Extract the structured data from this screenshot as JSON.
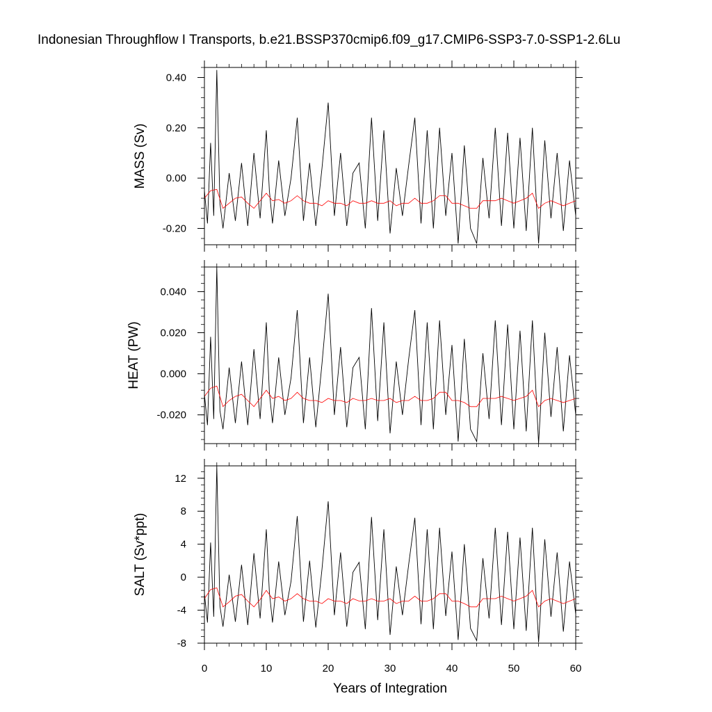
{
  "title": "Indonesian Throughflow I Transports, b.e21.BSSP370cmip6.f09_g17.CMIP6-SSP3-7.0-SSP1-2.6Lu",
  "chart_data": [
    {
      "type": "line",
      "ylabel": "MASS (Sv)",
      "ylim": [
        -0.265,
        0.44
      ],
      "yticks": [
        -0.2,
        0.0,
        0.2,
        0.4
      ],
      "ytick_labels": [
        "-0.20",
        "0.00",
        "0.20",
        "0.40"
      ],
      "series": [
        {
          "color": "#000000",
          "x": [
            0.0,
            0.5,
            1.0,
            1.5,
            2.0,
            2.5,
            3.0,
            4.0,
            5.0,
            6.0,
            7.0,
            8.0,
            9.0,
            10.0,
            10.5,
            11.0,
            12.0,
            13.0,
            14.0,
            15.0,
            16.0,
            17.0,
            18.0,
            19.0,
            20.0,
            21.0,
            22.0,
            23.0,
            24.0,
            25.0,
            26.0,
            27.0,
            28.0,
            29.0,
            30.0,
            31.0,
            32.0,
            33.0,
            34.0,
            35.0,
            36.0,
            37.0,
            38.0,
            39.0,
            40.0,
            41.0,
            42.0,
            43.0,
            44.0,
            45.0,
            46.0,
            47.0,
            48.0,
            49.0,
            50.0,
            51.0,
            52.0,
            53.0,
            54.0,
            55.0,
            56.0,
            57.0,
            58.0,
            59.0,
            60.0
          ],
          "values": [
            -0.05,
            -0.18,
            0.14,
            -0.15,
            0.43,
            -0.1,
            -0.2,
            0.02,
            -0.17,
            0.06,
            -0.19,
            0.1,
            -0.16,
            0.19,
            -0.05,
            -0.18,
            0.07,
            -0.15,
            0.0,
            0.24,
            -0.17,
            0.06,
            -0.19,
            0.04,
            0.3,
            -0.15,
            0.1,
            -0.19,
            0.02,
            0.06,
            -0.2,
            0.24,
            -0.17,
            0.19,
            -0.22,
            0.04,
            -0.15,
            0.05,
            0.24,
            -0.18,
            0.19,
            -0.2,
            0.2,
            -0.15,
            0.1,
            -0.26,
            0.13,
            -0.2,
            -0.26,
            0.08,
            -0.16,
            0.2,
            -0.19,
            0.18,
            -0.2,
            0.16,
            -0.21,
            0.2,
            -0.26,
            0.15,
            -0.16,
            0.1,
            -0.21,
            0.07,
            -0.15
          ]
        },
        {
          "color": "#ff0000",
          "x": [
            0,
            1,
            2,
            3,
            4,
            5,
            6,
            7,
            8,
            9,
            10,
            11,
            12,
            13,
            14,
            15,
            16,
            17,
            18,
            19,
            20,
            21,
            22,
            23,
            24,
            25,
            26,
            27,
            28,
            29,
            30,
            31,
            32,
            33,
            34,
            35,
            36,
            37,
            38,
            39,
            40,
            41,
            42,
            43,
            44,
            45,
            46,
            47,
            48,
            49,
            50,
            51,
            52,
            53,
            54,
            55,
            56,
            57,
            58,
            59,
            60
          ],
          "values": [
            -0.08,
            -0.05,
            -0.045,
            -0.12,
            -0.1,
            -0.08,
            -0.075,
            -0.1,
            -0.12,
            -0.09,
            -0.06,
            -0.09,
            -0.085,
            -0.1,
            -0.09,
            -0.07,
            -0.09,
            -0.1,
            -0.1,
            -0.11,
            -0.09,
            -0.1,
            -0.1,
            -0.11,
            -0.09,
            -0.1,
            -0.1,
            -0.09,
            -0.1,
            -0.1,
            -0.09,
            -0.11,
            -0.1,
            -0.1,
            -0.08,
            -0.1,
            -0.1,
            -0.09,
            -0.07,
            -0.07,
            -0.1,
            -0.1,
            -0.11,
            -0.12,
            -0.12,
            -0.09,
            -0.09,
            -0.09,
            -0.08,
            -0.09,
            -0.1,
            -0.09,
            -0.08,
            -0.06,
            -0.12,
            -0.1,
            -0.09,
            -0.1,
            -0.11,
            -0.1,
            -0.09
          ]
        }
      ]
    },
    {
      "type": "line",
      "ylabel": "HEAT (PW)",
      "ylim": [
        -0.034,
        0.052
      ],
      "yticks": [
        -0.02,
        0.0,
        0.02,
        0.04
      ],
      "ytick_labels": [
        "-0.020",
        "0.000",
        "0.020",
        "0.040"
      ],
      "series": [
        {
          "color": "#000000",
          "x": [
            0.0,
            0.5,
            1.0,
            1.5,
            2.0,
            2.5,
            3.0,
            4.0,
            5.0,
            6.0,
            7.0,
            8.0,
            9.0,
            10.0,
            10.5,
            11.0,
            12.0,
            13.0,
            14.0,
            15.0,
            16.0,
            17.0,
            18.0,
            19.0,
            20.0,
            21.0,
            22.0,
            23.0,
            24.0,
            25.0,
            26.0,
            27.0,
            28.0,
            29.0,
            30.0,
            31.0,
            32.0,
            33.0,
            34.0,
            35.0,
            36.0,
            37.0,
            38.0,
            39.0,
            40.0,
            41.0,
            42.0,
            43.0,
            44.0,
            45.0,
            46.0,
            47.0,
            48.0,
            49.0,
            50.0,
            51.0,
            52.0,
            53.0,
            54.0,
            55.0,
            56.0,
            57.0,
            58.0,
            59.0,
            60.0
          ],
          "values": [
            -0.01,
            -0.025,
            0.018,
            -0.022,
            0.052,
            -0.018,
            -0.027,
            0.003,
            -0.024,
            0.006,
            -0.025,
            0.012,
            -0.022,
            0.025,
            -0.009,
            -0.024,
            0.008,
            -0.02,
            -0.002,
            0.031,
            -0.024,
            0.008,
            -0.026,
            0.005,
            0.039,
            -0.02,
            0.013,
            -0.026,
            0.003,
            0.008,
            -0.027,
            0.032,
            -0.023,
            0.025,
            -0.029,
            0.006,
            -0.02,
            0.007,
            0.031,
            -0.025,
            0.025,
            -0.027,
            0.026,
            -0.02,
            0.014,
            -0.033,
            0.017,
            -0.027,
            -0.033,
            0.01,
            -0.022,
            0.026,
            -0.025,
            0.024,
            -0.027,
            0.021,
            -0.028,
            0.026,
            -0.034,
            0.02,
            -0.021,
            0.013,
            -0.028,
            0.009,
            -0.02
          ]
        },
        {
          "color": "#ff0000",
          "x": [
            0,
            1,
            2,
            3,
            4,
            5,
            6,
            7,
            8,
            9,
            10,
            11,
            12,
            13,
            14,
            15,
            16,
            17,
            18,
            19,
            20,
            21,
            22,
            23,
            24,
            25,
            26,
            27,
            28,
            29,
            30,
            31,
            32,
            33,
            34,
            35,
            36,
            37,
            38,
            39,
            40,
            41,
            42,
            43,
            44,
            45,
            46,
            47,
            48,
            49,
            50,
            51,
            52,
            53,
            54,
            55,
            56,
            57,
            58,
            59,
            60
          ],
          "values": [
            -0.011,
            -0.007,
            -0.006,
            -0.016,
            -0.013,
            -0.011,
            -0.01,
            -0.013,
            -0.016,
            -0.012,
            -0.008,
            -0.012,
            -0.011,
            -0.013,
            -0.012,
            -0.009,
            -0.012,
            -0.013,
            -0.013,
            -0.014,
            -0.012,
            -0.013,
            -0.013,
            -0.014,
            -0.012,
            -0.013,
            -0.013,
            -0.012,
            -0.013,
            -0.013,
            -0.012,
            -0.014,
            -0.013,
            -0.013,
            -0.011,
            -0.013,
            -0.013,
            -0.012,
            -0.009,
            -0.009,
            -0.013,
            -0.013,
            -0.014,
            -0.016,
            -0.016,
            -0.012,
            -0.012,
            -0.012,
            -0.011,
            -0.012,
            -0.013,
            -0.012,
            -0.011,
            -0.008,
            -0.016,
            -0.013,
            -0.012,
            -0.013,
            -0.014,
            -0.013,
            -0.012
          ]
        }
      ]
    },
    {
      "type": "line",
      "ylabel": "SALT (Sv*ppt)",
      "xlabel": "Years of Integration",
      "xlim": [
        0,
        60
      ],
      "xticks": [
        0,
        10,
        20,
        30,
        40,
        50,
        60
      ],
      "xtick_labels": [
        "0",
        "10",
        "20",
        "30",
        "40",
        "50",
        "60"
      ],
      "ylim": [
        -8,
        13.5
      ],
      "yticks": [
        -8,
        -4,
        0,
        4,
        8,
        12
      ],
      "ytick_labels": [
        "-8",
        "-4",
        "0",
        "4",
        "8",
        "12"
      ],
      "series": [
        {
          "color": "#000000",
          "x": [
            0.0,
            0.5,
            1.0,
            1.5,
            2.0,
            2.5,
            3.0,
            4.0,
            5.0,
            6.0,
            7.0,
            8.0,
            9.0,
            10.0,
            10.5,
            11.0,
            12.0,
            13.0,
            14.0,
            15.0,
            16.0,
            17.0,
            18.0,
            19.0,
            20.0,
            21.0,
            22.0,
            23.0,
            24.0,
            25.0,
            26.0,
            27.0,
            28.0,
            29.0,
            30.0,
            31.0,
            32.0,
            33.0,
            34.0,
            35.0,
            36.0,
            37.0,
            38.0,
            39.0,
            40.0,
            41.0,
            42.0,
            43.0,
            44.0,
            45.0,
            46.0,
            47.0,
            48.0,
            49.0,
            50.0,
            51.0,
            52.0,
            53.0,
            54.0,
            55.0,
            56.0,
            57.0,
            58.0,
            59.0,
            60.0
          ],
          "values": [
            -2.0,
            -5.5,
            4.2,
            -4.8,
            13.5,
            -3.5,
            -6.0,
            0.3,
            -5.4,
            1.5,
            -5.8,
            2.9,
            -5.0,
            5.8,
            -1.8,
            -5.5,
            1.9,
            -4.6,
            -0.5,
            7.4,
            -5.4,
            2.0,
            -6.1,
            1.0,
            9.2,
            -4.6,
            3.0,
            -6.0,
            0.6,
            1.8,
            -6.3,
            7.3,
            -5.2,
            5.8,
            -7.0,
            1.3,
            -4.6,
            1.5,
            7.2,
            -5.7,
            5.8,
            -6.3,
            6.0,
            -4.7,
            3.1,
            -7.6,
            4.0,
            -6.2,
            -7.7,
            2.3,
            -5.0,
            6.0,
            -5.8,
            5.5,
            -6.3,
            4.8,
            -6.5,
            6.0,
            -7.9,
            4.6,
            -4.8,
            3.0,
            -6.6,
            1.9,
            -4.5
          ]
        },
        {
          "color": "#ff0000",
          "x": [
            0,
            1,
            2,
            3,
            4,
            5,
            6,
            7,
            8,
            9,
            10,
            11,
            12,
            13,
            14,
            15,
            16,
            17,
            18,
            19,
            20,
            21,
            22,
            23,
            24,
            25,
            26,
            27,
            28,
            29,
            30,
            31,
            32,
            33,
            34,
            35,
            36,
            37,
            38,
            39,
            40,
            41,
            42,
            43,
            44,
            45,
            46,
            47,
            48,
            49,
            50,
            51,
            52,
            53,
            54,
            55,
            56,
            57,
            58,
            59,
            60
          ],
          "values": [
            -2.6,
            -1.5,
            -1.3,
            -3.6,
            -3.0,
            -2.3,
            -2.1,
            -2.9,
            -3.6,
            -2.7,
            -1.6,
            -2.6,
            -2.4,
            -2.9,
            -2.6,
            -2.0,
            -2.6,
            -2.9,
            -2.9,
            -3.2,
            -2.6,
            -2.9,
            -2.9,
            -3.2,
            -2.6,
            -2.9,
            -2.9,
            -2.6,
            -2.9,
            -2.9,
            -2.6,
            -3.2,
            -2.9,
            -2.9,
            -2.3,
            -2.9,
            -2.9,
            -2.6,
            -2.0,
            -2.0,
            -2.9,
            -2.9,
            -3.2,
            -3.6,
            -3.6,
            -2.6,
            -2.6,
            -2.6,
            -2.3,
            -2.6,
            -2.9,
            -2.6,
            -2.3,
            -1.6,
            -3.6,
            -2.9,
            -2.6,
            -2.9,
            -3.2,
            -2.9,
            -2.6
          ]
        }
      ]
    }
  ]
}
